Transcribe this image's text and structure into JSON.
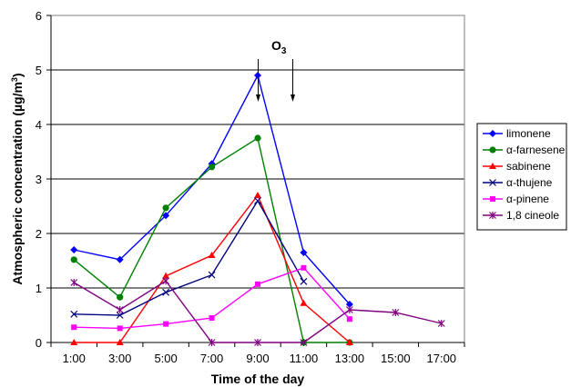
{
  "chart_data": {
    "type": "line",
    "xlabel": "Time of the day",
    "ylabel": "Atmospheric concentration  (µg/m",
    "ylabel_sup": "3",
    "ylabel_close": ")",
    "ylim": [
      0,
      6
    ],
    "yticks": [
      "0",
      "1",
      "2",
      "3",
      "4",
      "5",
      "6"
    ],
    "x_categories": [
      "1:00",
      "3:00",
      "5:00",
      "7:00",
      "9:00",
      "11:00",
      "13:00",
      "15:00",
      "17:00"
    ],
    "grid": "horizontal",
    "legend_position": "right",
    "annotation": {
      "text": "O",
      "sub": "3",
      "arrows_at": [
        "9:00",
        "10:30"
      ]
    },
    "series": [
      {
        "name": "limonene",
        "color": "#0000FF",
        "marker": "diamond",
        "points": [
          [
            "1:00",
            1.7
          ],
          [
            "3:00",
            1.52
          ],
          [
            "5:00",
            2.33
          ],
          [
            "7:00",
            3.28
          ],
          [
            "9:00",
            4.9
          ],
          [
            "11:00",
            1.65
          ],
          [
            "13:00",
            0.7
          ]
        ]
      },
      {
        "name": "α-farnesene",
        "color": "#008000",
        "marker": "circle",
        "points": [
          [
            "1:00",
            1.52
          ],
          [
            "3:00",
            0.83
          ],
          [
            "5:00",
            2.47
          ],
          [
            "7:00",
            3.22
          ],
          [
            "9:00",
            3.75
          ],
          [
            "11:00",
            0.0
          ],
          [
            "13:00",
            0.0
          ]
        ]
      },
      {
        "name": "sabinene",
        "color": "#FF0000",
        "marker": "triangle",
        "points": [
          [
            "1:00",
            0.0
          ],
          [
            "3:00",
            0.0
          ],
          [
            "5:00",
            1.22
          ],
          [
            "7:00",
            1.6
          ],
          [
            "9:00",
            2.7
          ],
          [
            "11:00",
            0.72
          ],
          [
            "13:00",
            0.0
          ]
        ]
      },
      {
        "name": "α-thujene",
        "color": "#000080",
        "marker": "x",
        "points": [
          [
            "1:00",
            0.52
          ],
          [
            "3:00",
            0.5
          ],
          [
            "5:00",
            0.92
          ],
          [
            "7:00",
            1.24
          ],
          [
            "9:00",
            2.6
          ],
          [
            "11:00",
            1.12
          ]
        ]
      },
      {
        "name": "α-pinene",
        "color": "#FF00FF",
        "marker": "square",
        "points": [
          [
            "1:00",
            0.28
          ],
          [
            "3:00",
            0.26
          ],
          [
            "5:00",
            0.34
          ],
          [
            "7:00",
            0.45
          ],
          [
            "9:00",
            1.07
          ],
          [
            "11:00",
            1.37
          ],
          [
            "13:00",
            0.43
          ]
        ]
      },
      {
        "name": "1,8 cineole",
        "color": "#800080",
        "marker": "star",
        "points": [
          [
            "1:00",
            1.1
          ],
          [
            "3:00",
            0.6
          ],
          [
            "5:00",
            1.13
          ],
          [
            "7:00",
            0.0
          ],
          [
            "9:00",
            0.0
          ],
          [
            "11:00",
            0.0
          ],
          [
            "13:00",
            0.6
          ],
          [
            "15:00",
            0.55
          ],
          [
            "17:00",
            0.35
          ]
        ]
      }
    ]
  }
}
